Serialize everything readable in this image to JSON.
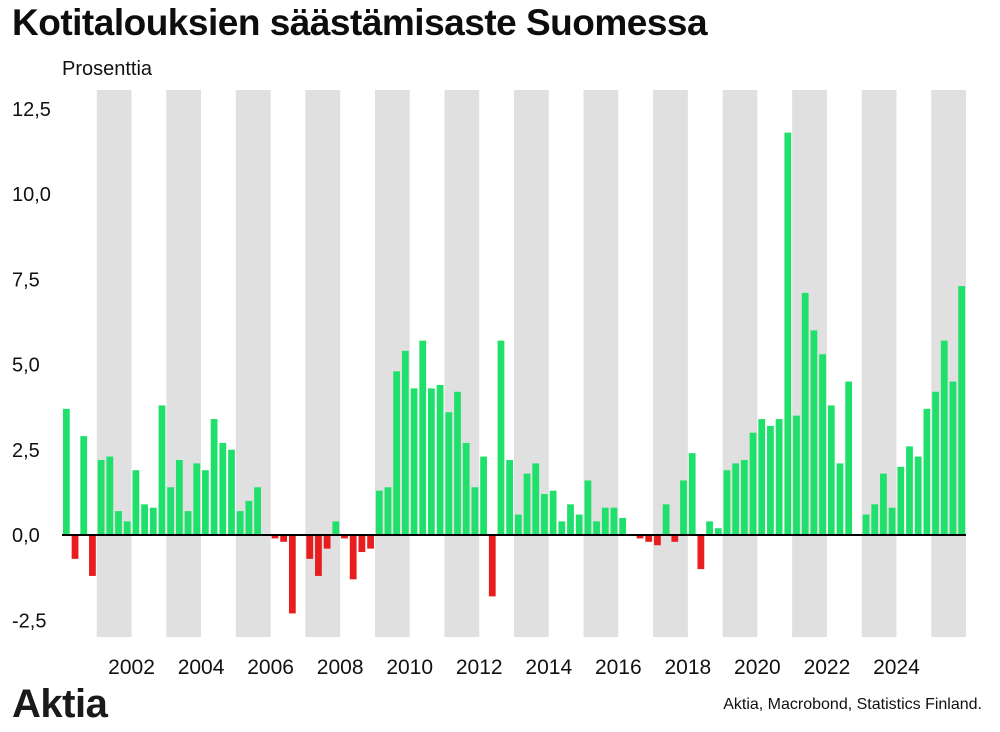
{
  "title": "Kotitalouksien säästämisaste Suomessa",
  "unit_label": "Prosenttia",
  "brand": "Aktia",
  "source": "Aktia, Macrobond, Statistics Finland.",
  "chart_data": {
    "type": "bar",
    "frequency": "quarterly",
    "start": "2000Q1",
    "ylim": [
      -3.0,
      12.5
    ],
    "yticks": [
      -2.5,
      0.0,
      2.5,
      5.0,
      7.5,
      10.0,
      12.5
    ],
    "ytick_labels": [
      "-2,5",
      "0,0",
      "2,5",
      "5,0",
      "7,5",
      "10,0",
      "12,5"
    ],
    "xtick_labels": [
      "2002",
      "2004",
      "2006",
      "2008",
      "2010",
      "2012",
      "2014",
      "2016",
      "2018",
      "2020",
      "2022",
      "2024"
    ],
    "alternating_year_shading": true,
    "colors": {
      "positive": "#1fe06a",
      "negative": "#e81d1d",
      "shading": "#e0e0e0",
      "zero_line": "#000000"
    },
    "values": [
      3.7,
      -0.7,
      2.9,
      -1.2,
      2.2,
      2.3,
      0.7,
      0.4,
      1.9,
      0.9,
      0.8,
      3.8,
      1.4,
      2.2,
      0.7,
      2.1,
      1.9,
      3.4,
      2.7,
      2.5,
      0.7,
      1.0,
      1.4,
      0.0,
      -0.1,
      -0.2,
      -2.3,
      0.0,
      -0.7,
      -1.2,
      -0.4,
      0.4,
      -0.1,
      -1.3,
      -0.5,
      -0.4,
      1.3,
      1.4,
      4.8,
      5.4,
      4.3,
      5.7,
      4.3,
      4.4,
      3.6,
      4.2,
      2.7,
      1.4,
      2.3,
      -1.8,
      5.7,
      2.2,
      0.6,
      1.8,
      2.1,
      1.2,
      1.3,
      0.4,
      0.9,
      0.6,
      1.6,
      0.4,
      0.8,
      0.8,
      0.5,
      0.0,
      -0.1,
      -0.2,
      -0.3,
      0.9,
      -0.2,
      1.6,
      2.4,
      -1.0,
      0.4,
      0.2,
      1.9,
      2.1,
      2.2,
      3.0,
      3.4,
      3.2,
      3.4,
      11.8,
      3.5,
      7.1,
      6.0,
      5.3,
      3.8,
      2.1,
      4.5,
      0.0,
      0.6,
      0.9,
      1.8,
      0.8,
      2.0,
      2.6,
      2.3,
      3.7,
      4.2,
      5.7,
      4.5,
      7.3
    ]
  }
}
